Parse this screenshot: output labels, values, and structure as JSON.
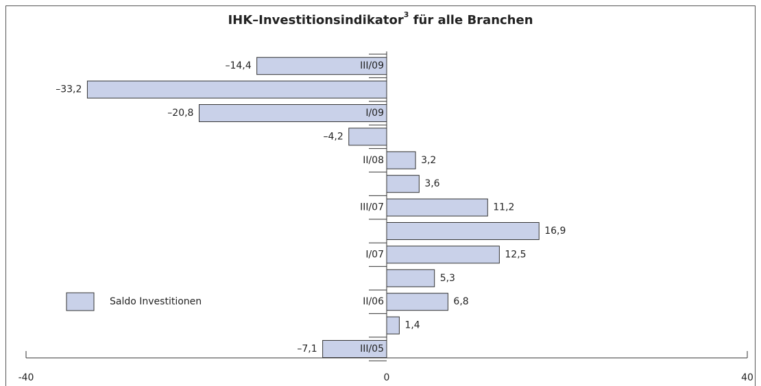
{
  "chart_data": {
    "type": "bar",
    "orientation": "horizontal",
    "title_parts": [
      "IHK–Investitionsindikator",
      "3",
      " für alle Branchen"
    ],
    "categories": [
      "III/09",
      null,
      "I/09",
      null,
      "II/08",
      null,
      "III/07",
      null,
      "I/07",
      null,
      "II/06",
      null,
      "III/05"
    ],
    "series": [
      {
        "name": "Saldo Investitionen",
        "color": "#c9d1e9",
        "values": [
          -14.4,
          -33.2,
          -20.8,
          -4.2,
          3.2,
          3.6,
          11.2,
          16.9,
          12.5,
          5.3,
          6.8,
          1.4,
          -7.1
        ],
        "value_labels": [
          "–14,4",
          "–33,2",
          "–20,8",
          "–4,2",
          "3,2",
          "3,6",
          "11,2",
          "16,9",
          "12,5",
          "5,3",
          "6,8",
          "1,4",
          "–7,1"
        ]
      }
    ],
    "xlim": [
      -40,
      40
    ],
    "xticks": [
      -40,
      0,
      40
    ]
  }
}
